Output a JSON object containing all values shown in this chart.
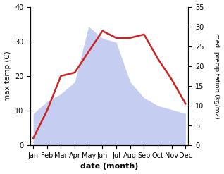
{
  "months": [
    "Jan",
    "Feb",
    "Mar",
    "Apr",
    "May",
    "Jun",
    "Jul",
    "Aug",
    "Sep",
    "Oct",
    "Nov",
    "Dec"
  ],
  "month_indices": [
    0,
    1,
    2,
    3,
    4,
    5,
    6,
    7,
    8,
    9,
    10,
    11
  ],
  "temperature": [
    2,
    10,
    20,
    21,
    27,
    33,
    31,
    31,
    32,
    25,
    19,
    12
  ],
  "precipitation": [
    8,
    11,
    13,
    16,
    30,
    27,
    26,
    16,
    12,
    10,
    9,
    8
  ],
  "temp_ylim": [
    0,
    40
  ],
  "precip_ylim": [
    0,
    35
  ],
  "temp_yticks": [
    0,
    10,
    20,
    30,
    40
  ],
  "precip_yticks": [
    0,
    5,
    10,
    15,
    20,
    25,
    30,
    35
  ],
  "temp_color": "#cc2222",
  "precip_fill_color": "#c5cef0",
  "xlabel": "date (month)",
  "ylabel_left": "max temp (C)",
  "ylabel_right": "med. precipitation (kg/m2)",
  "fig_width": 3.18,
  "fig_height": 2.47,
  "dpi": 100,
  "background_color": "#ffffff"
}
